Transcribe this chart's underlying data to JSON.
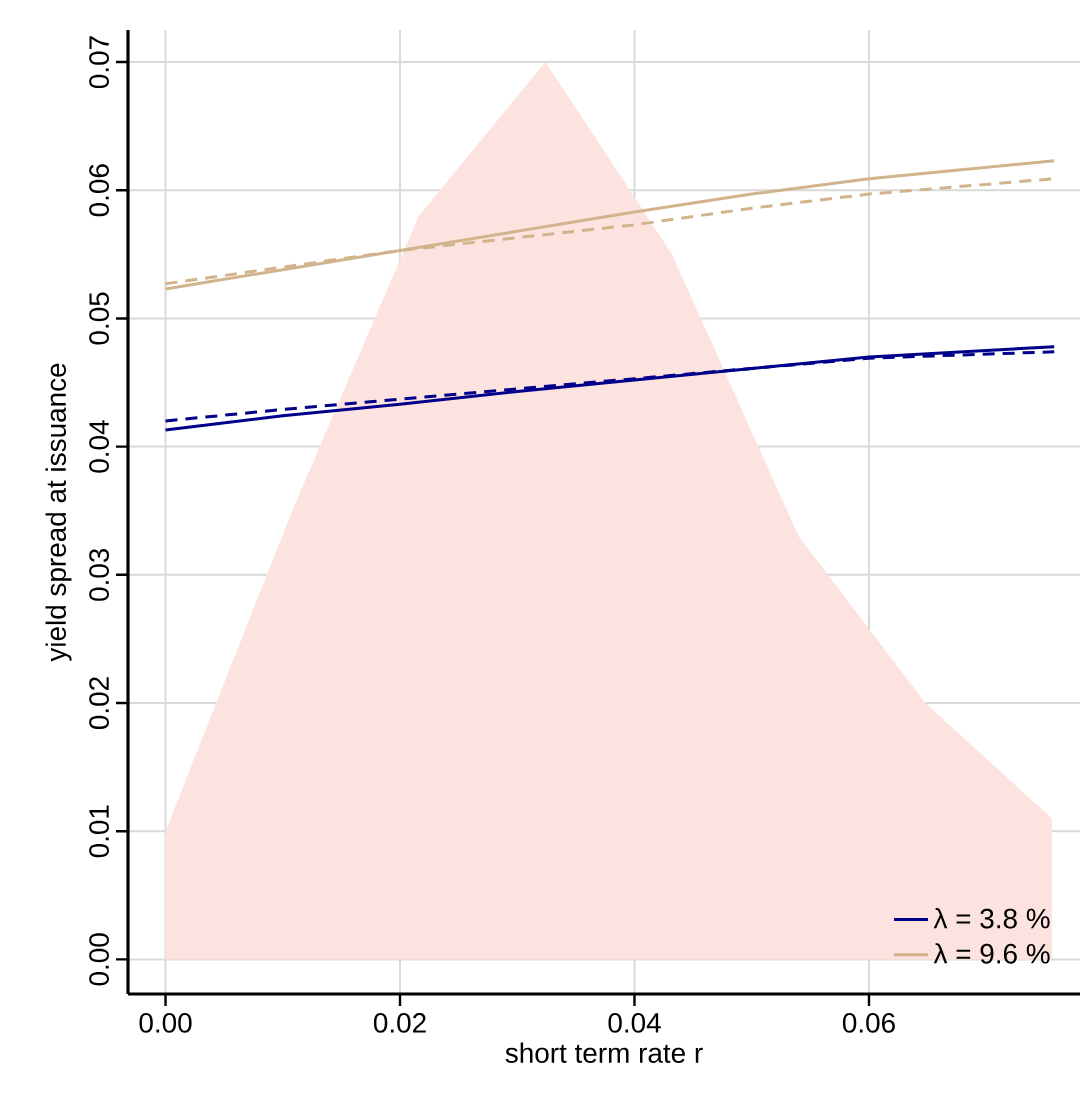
{
  "chart_data": {
    "type": "line",
    "xlabel": "short term rate r",
    "ylabel": "yield spread at issuance",
    "xlim": [
      -0.0032,
      0.078
    ],
    "ylim": [
      -0.0027,
      0.0725
    ],
    "xticks": [
      {
        "value": 0,
        "label": "0.00"
      },
      0.02,
      0.04,
      0.06
    ],
    "yticks": [
      {
        "value": 0,
        "label": "0.00"
      },
      0.01,
      0.02,
      0.03,
      0.04,
      0.05,
      0.06,
      0.07
    ],
    "grid": true,
    "legend": "bottom right",
    "series": [
      {
        "type": "area",
        "color": "#fde3df",
        "x": [
          0,
          0.0108,
          0.0216,
          0.0324,
          0.0432,
          0.054,
          0.0648,
          0.0756
        ],
        "values": [
          0.01,
          0.035,
          0.058,
          0.07,
          0.055,
          0.033,
          0.02,
          0.011
        ]
      },
      {
        "name": "λ = 3.8 %",
        "color": "#00008b",
        "line_style": "solid",
        "x": [
          0,
          0.01,
          0.02,
          0.03,
          0.04,
          0.05,
          0.06,
          0.0758
        ],
        "values": [
          0.0413,
          0.0424,
          0.0433,
          0.0443,
          0.0452,
          0.0461,
          0.047,
          0.0478
        ]
      },
      {
        "name": "λ = 9.6 %",
        "color": "#d2b48c",
        "line_style": "solid",
        "x": [
          0,
          0.01,
          0.02,
          0.03,
          0.04,
          0.05,
          0.06,
          0.0758
        ],
        "values": [
          0.0523,
          0.0538,
          0.0553,
          0.0568,
          0.0583,
          0.0597,
          0.0609,
          0.0623
        ]
      },
      {
        "color": "#00008b",
        "line_style": "dashed",
        "x": [
          0,
          0.01,
          0.02,
          0.03,
          0.04,
          0.05,
          0.06,
          0.0758
        ],
        "values": [
          0.042,
          0.0429,
          0.0437,
          0.0445,
          0.0453,
          0.0461,
          0.0469,
          0.0474
        ]
      },
      {
        "color": "#d2b48c",
        "line_style": "dashed",
        "x": [
          0,
          0.01,
          0.02,
          0.03,
          0.04,
          0.05,
          0.06,
          0.0758
        ],
        "values": [
          0.0527,
          0.054,
          0.0553,
          0.0563,
          0.0573,
          0.0586,
          0.0597,
          0.0609
        ]
      }
    ]
  }
}
